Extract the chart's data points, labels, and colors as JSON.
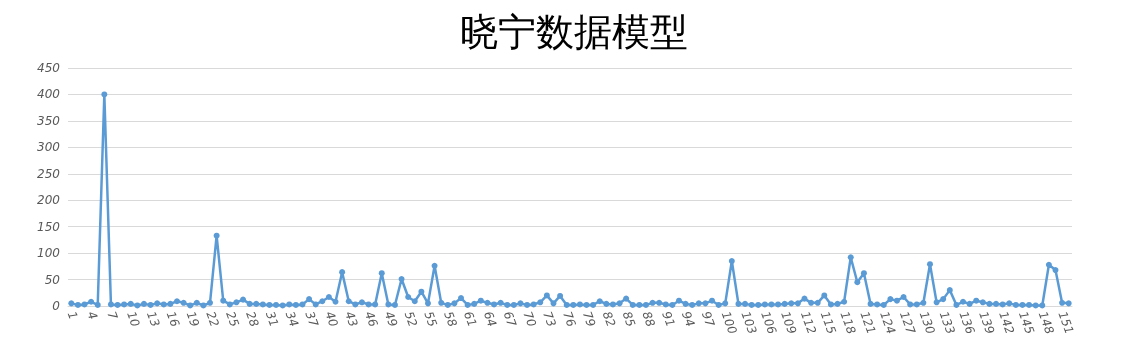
{
  "chart_data": {
    "type": "line",
    "title": "晓宁数据模型",
    "categories": [
      "1",
      null,
      null,
      "4",
      null,
      null,
      "7",
      null,
      null,
      "10",
      null,
      null,
      "13",
      null,
      null,
      "16",
      null,
      null,
      "19",
      null,
      null,
      "22",
      null,
      null,
      "25",
      null,
      null,
      "28",
      null,
      null,
      "31",
      null,
      null,
      "34",
      null,
      null,
      "37",
      null,
      null,
      "40",
      null,
      null,
      "43",
      null,
      null,
      "46",
      null,
      null,
      "49",
      null,
      null,
      "52",
      null,
      null,
      "55",
      null,
      null,
      "58",
      null,
      null,
      "61",
      null,
      null,
      "64",
      null,
      null,
      "67",
      null,
      null,
      "70",
      null,
      null,
      "73",
      null,
      null,
      "76",
      null,
      null,
      "79",
      null,
      null,
      "82",
      null,
      null,
      "85",
      null,
      null,
      "88",
      null,
      null,
      "91",
      null,
      null,
      "94",
      null,
      null,
      "97",
      null,
      null,
      "100",
      null,
      null,
      "103",
      null,
      null,
      "106",
      null,
      null,
      "109",
      null,
      null,
      "112",
      null,
      null,
      "115",
      null,
      null,
      "118",
      null,
      null,
      "121",
      null,
      null,
      "124",
      null,
      null,
      "127",
      null,
      null,
      "130",
      null,
      null,
      "133",
      null,
      null,
      "136",
      null,
      null,
      "139",
      null,
      null,
      "142",
      null,
      null,
      "145",
      null,
      null,
      "148",
      null,
      null,
      "151",
      null
    ],
    "series": [
      {
        "color": "#5b9bd5",
        "values": [
          5,
          2,
          3,
          8,
          2,
          400,
          3,
          2,
          3,
          4,
          1,
          4,
          2,
          5,
          3,
          4,
          9,
          6,
          1,
          6,
          1,
          6,
          133,
          10,
          3,
          7,
          12,
          4,
          4,
          3,
          2,
          2,
          1,
          3,
          2,
          3,
          13,
          3,
          9,
          17,
          8,
          64,
          9,
          3,
          7,
          3,
          3,
          62,
          3,
          2,
          51,
          17,
          9,
          27,
          5,
          76,
          6,
          2,
          5,
          15,
          2,
          4,
          10,
          6,
          3,
          6,
          2,
          2,
          5,
          2,
          3,
          7,
          20,
          5,
          19,
          2,
          2,
          3,
          2,
          2,
          9,
          4,
          3,
          5,
          14,
          2,
          2,
          2,
          6,
          6,
          3,
          2,
          10,
          4,
          2,
          5,
          5,
          10,
          2,
          5,
          85,
          4,
          4,
          2,
          2,
          3,
          3,
          3,
          4,
          5,
          5,
          14,
          6,
          6,
          20,
          3,
          4,
          8,
          92,
          45,
          62,
          4,
          3,
          2,
          13,
          10,
          17,
          3,
          3,
          6,
          79,
          7,
          13,
          30,
          2,
          8,
          4,
          10,
          7,
          4,
          4,
          3,
          5,
          2,
          2,
          2,
          1,
          1,
          78,
          68,
          6,
          5
        ]
      }
    ],
    "ylim": [
      0,
      450
    ],
    "yticks": [
      0,
      50,
      100,
      150,
      200,
      250,
      300,
      350,
      400,
      450
    ],
    "grid": "y",
    "marker": "circle",
    "line_style": "solid"
  }
}
